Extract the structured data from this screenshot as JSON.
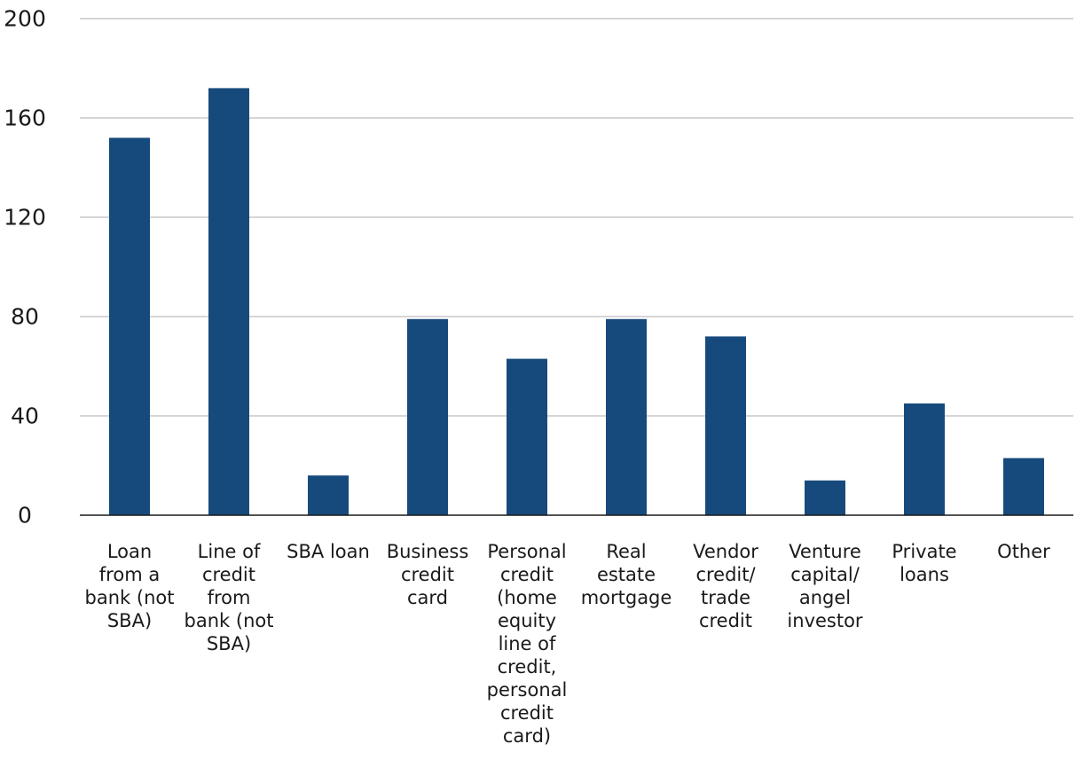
{
  "chart_data": {
    "type": "bar",
    "title": "",
    "xlabel": "",
    "ylabel": "",
    "ylim": [
      0,
      200
    ],
    "yticks": [
      0,
      40,
      80,
      120,
      160,
      200
    ],
    "grid": true,
    "legend": "none",
    "bar_color": "#174a7c",
    "grid_color": "#c8c8c8",
    "axis_color": "#1a1a1a",
    "categories": [
      [
        "Loan",
        "from a",
        "bank (not",
        "SBA)"
      ],
      [
        "Line of",
        "credit",
        "from",
        "bank (not",
        "SBA)"
      ],
      [
        "SBA loan"
      ],
      [
        "Business",
        "credit",
        "card"
      ],
      [
        "Personal",
        "credit",
        "(home",
        "equity",
        "line of",
        "credit,",
        "personal",
        "credit",
        "card)"
      ],
      [
        "Real",
        "estate",
        "mortgage"
      ],
      [
        "Vendor",
        "credit/",
        "trade",
        "credit"
      ],
      [
        "Venture",
        "capital/",
        "angel",
        "investor"
      ],
      [
        "Private",
        "loans"
      ],
      [
        "Other"
      ]
    ],
    "values": [
      152,
      172,
      16,
      79,
      63,
      79,
      72,
      14,
      45,
      23
    ]
  }
}
